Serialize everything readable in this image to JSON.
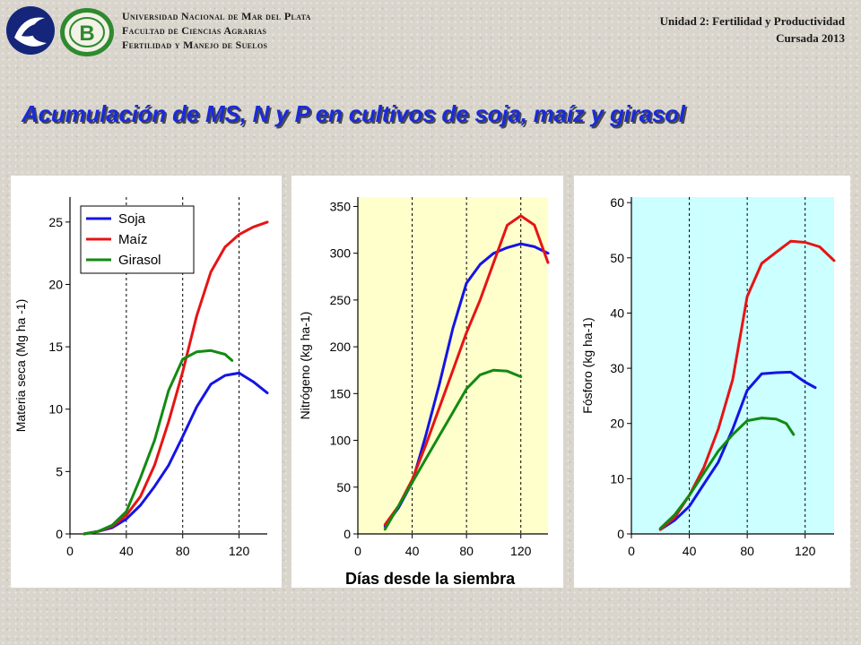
{
  "header": {
    "university_lines": [
      "Universidad Nacional de Mar del Plata",
      "Facultad de Ciencias Agrarias",
      "Fertilidad y Manejo de Suelos"
    ],
    "unit": "Unidad 2: Fertilidad y Productividad",
    "course": "Cursada 2013",
    "logo_left": "wave-logo-icon",
    "logo_right": "seal-b-logo-icon",
    "seal_letter": "B"
  },
  "slide_title": "Acumulación de MS, N y P en cultivos de soja, maíz y girasol",
  "shared_xlabel": "Días desde la siembra",
  "colors": {
    "soja": "#1414e6",
    "maiz": "#e61414",
    "girasol": "#128a12",
    "title": "#1a2bd8",
    "panel2_bg": "#ffffcc",
    "panel3_bg": "#ccffff"
  },
  "chart_data": [
    {
      "type": "line",
      "ylabel": "Materia seca (Mg ha -1)",
      "xlim": [
        0,
        140
      ],
      "ylim": [
        0,
        27
      ],
      "xticks": [
        0,
        40,
        80,
        120
      ],
      "yticks": [
        0,
        5,
        10,
        15,
        20,
        25
      ],
      "vlines": [
        40,
        80,
        120
      ],
      "grid": false,
      "legend": {
        "position": "top-left",
        "entries": [
          "Soja",
          "Maíz",
          "Girasol"
        ]
      },
      "series": [
        {
          "name": "Soja",
          "color": "#1414e6",
          "x": [
            10,
            20,
            30,
            40,
            50,
            60,
            70,
            80,
            90,
            100,
            110,
            120,
            130,
            140
          ],
          "y": [
            0,
            0.2,
            0.5,
            1.2,
            2.3,
            3.8,
            5.5,
            7.8,
            10.2,
            12.0,
            12.7,
            12.9,
            12.2,
            11.3
          ]
        },
        {
          "name": "Maíz",
          "color": "#e61414",
          "x": [
            10,
            20,
            30,
            40,
            50,
            60,
            70,
            80,
            90,
            100,
            110,
            120,
            130,
            140
          ],
          "y": [
            0,
            0.2,
            0.6,
            1.5,
            3.0,
            5.5,
            9.0,
            13.0,
            17.5,
            21.0,
            23.0,
            24.0,
            24.6,
            25.0
          ]
        },
        {
          "name": "Girasol",
          "color": "#128a12",
          "x": [
            10,
            20,
            30,
            40,
            50,
            60,
            70,
            80,
            90,
            100,
            110,
            115
          ],
          "y": [
            0,
            0.2,
            0.7,
            1.8,
            4.5,
            7.5,
            11.5,
            14.0,
            14.6,
            14.7,
            14.4,
            13.9
          ]
        }
      ]
    },
    {
      "type": "line",
      "ylabel": "Nitrógeno (kg ha-1)",
      "xlim": [
        0,
        140
      ],
      "ylim": [
        0,
        360
      ],
      "xticks": [
        0,
        40,
        80,
        120
      ],
      "yticks": [
        0,
        50,
        100,
        150,
        200,
        250,
        300,
        350
      ],
      "vlines": [
        40,
        80,
        120
      ],
      "grid": false,
      "series": [
        {
          "name": "Soja",
          "color": "#1414e6",
          "x": [
            20,
            30,
            40,
            50,
            60,
            70,
            80,
            90,
            100,
            110,
            120,
            130,
            140
          ],
          "y": [
            8,
            28,
            55,
            105,
            160,
            220,
            268,
            288,
            300,
            306,
            310,
            307,
            300
          ]
        },
        {
          "name": "Maíz",
          "color": "#e61414",
          "x": [
            20,
            30,
            40,
            50,
            60,
            70,
            80,
            90,
            100,
            110,
            120,
            130,
            140
          ],
          "y": [
            10,
            30,
            58,
            95,
            135,
            175,
            215,
            250,
            290,
            330,
            340,
            330,
            290
          ]
        },
        {
          "name": "Girasol",
          "color": "#128a12",
          "x": [
            20,
            30,
            40,
            50,
            60,
            70,
            80,
            90,
            100,
            110,
            120
          ],
          "y": [
            5,
            30,
            55,
            80,
            105,
            130,
            155,
            170,
            175,
            174,
            168
          ]
        }
      ]
    },
    {
      "type": "line",
      "ylabel": "Fósforo (kg ha-1)",
      "xlim": [
        0,
        140
      ],
      "ylim": [
        0,
        61
      ],
      "xticks": [
        0,
        40,
        80,
        120
      ],
      "yticks": [
        0,
        10,
        20,
        30,
        40,
        50,
        60
      ],
      "vlines": [
        40,
        80,
        120
      ],
      "grid": false,
      "series": [
        {
          "name": "Soja",
          "color": "#1414e6",
          "x": [
            20,
            30,
            40,
            50,
            60,
            70,
            80,
            90,
            100,
            110,
            120,
            127
          ],
          "y": [
            0.8,
            2.5,
            5,
            9,
            13,
            19,
            26,
            29,
            29.2,
            29.3,
            27.5,
            26.5
          ]
        },
        {
          "name": "Maíz",
          "color": "#e61414",
          "x": [
            20,
            30,
            40,
            50,
            60,
            70,
            80,
            90,
            100,
            110,
            120,
            130,
            140
          ],
          "y": [
            0.8,
            3,
            7,
            12,
            19,
            28,
            43,
            49,
            51,
            53,
            52.8,
            52,
            49.5
          ]
        },
        {
          "name": "Girasol",
          "color": "#128a12",
          "x": [
            20,
            30,
            40,
            50,
            60,
            70,
            80,
            90,
            100,
            107,
            112
          ],
          "y": [
            1,
            3.5,
            7,
            11,
            15,
            18,
            20.5,
            21,
            20.8,
            20,
            18
          ]
        }
      ]
    }
  ]
}
